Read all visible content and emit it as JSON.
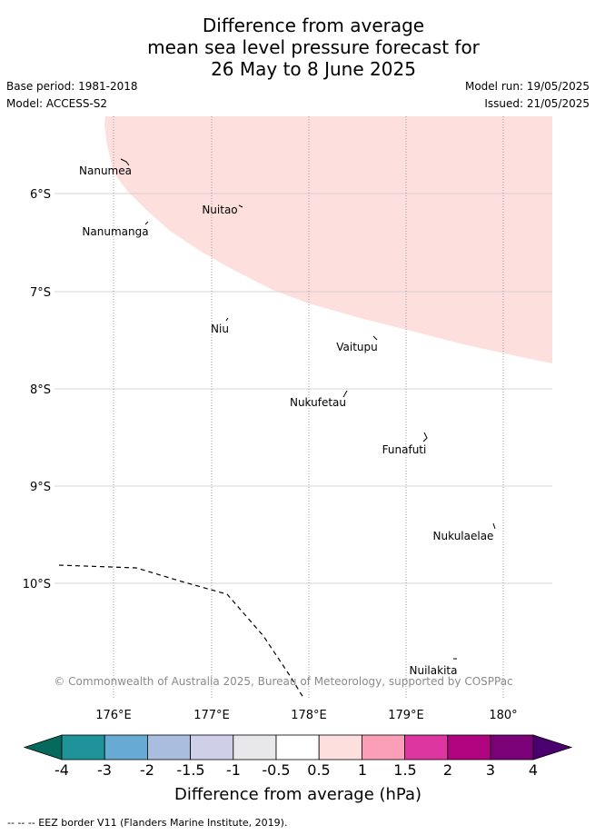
{
  "title": {
    "line1": "Difference from average",
    "line2": "mean sea level pressure forecast for",
    "line3": "26 May to 8 June 2025"
  },
  "meta": {
    "base_period": "Base period: 1981-2018",
    "model": "Model: ACCESS-S2",
    "model_run": "Model run: 19/05/2025",
    "issued": "Issued: 21/05/2025"
  },
  "map": {
    "lon_ticks": [
      "176°E",
      "177°E",
      "178°E",
      "179°E",
      "180°"
    ],
    "lat_ticks": [
      "6°S",
      "7°S",
      "8°S",
      "9°S",
      "10°S"
    ],
    "places": [
      "Nanumea",
      "Nuitao",
      "Nanumanga",
      "Niu",
      "Vaitupu",
      "Nukufetau",
      "Funafuti",
      "Nukulaelae",
      "Nuilakita"
    ],
    "anomaly_region_color": "#fddfdd",
    "copyright": "© Commonwealth of Australia 2025, Bureau of Meteorology, supported by COSPPac"
  },
  "colorbar": {
    "ticks": [
      "-4",
      "-3",
      "-2",
      "-1.5",
      "-1",
      "-0.5",
      "0.5",
      "1",
      "1.5",
      "2",
      "3",
      "4"
    ],
    "colors": [
      "#05695c",
      "#1e9399",
      "#67aad3",
      "#a9bddf",
      "#cfd0e7",
      "#e8e7e9",
      "#ffffff",
      "#fddfdd",
      "#fb9fb9",
      "#de36a0",
      "#b0037f",
      "#7a0178",
      "#4b0070"
    ],
    "label": "Difference from average (hPa)"
  },
  "footer": "--  --  -- EEZ border V11 (Flanders Marine Institute, 2019)."
}
